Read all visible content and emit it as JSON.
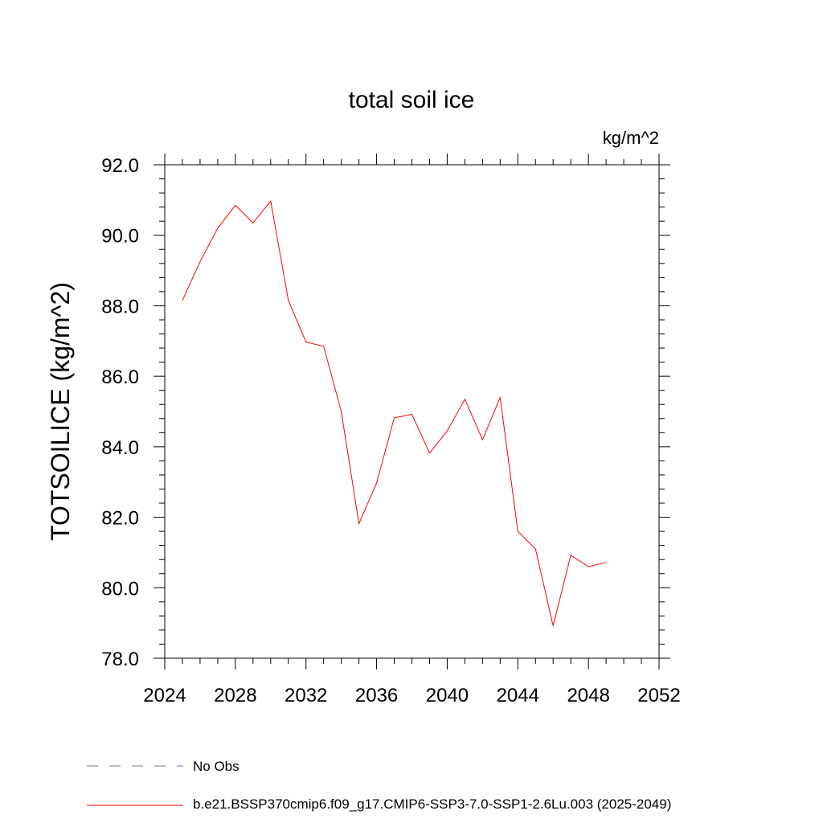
{
  "chart_data": {
    "type": "line",
    "title": "total soil ice",
    "units_label": "kg/m^2",
    "xlabel": "",
    "ylabel": "TOTSOILICE  (kg/m^2)",
    "xlim": [
      2024,
      2052
    ],
    "ylim": [
      78.0,
      92.0
    ],
    "x_ticks": [
      2024,
      2028,
      2032,
      2036,
      2040,
      2044,
      2048,
      2052
    ],
    "y_ticks": [
      78.0,
      80.0,
      82.0,
      84.0,
      86.0,
      88.0,
      90.0,
      92.0
    ],
    "x_tick_labels": [
      "2024",
      "2028",
      "2032",
      "2036",
      "2040",
      "2044",
      "2048",
      "2052"
    ],
    "y_tick_labels": [
      "78.0",
      "80.0",
      "82.0",
      "84.0",
      "86.0",
      "88.0",
      "90.0",
      "92.0"
    ],
    "grid": false,
    "legend_position": "bottom-left",
    "legend": [
      {
        "label": "No Obs",
        "style": "dashed",
        "color": "#7b6fb0"
      },
      {
        "label": "b.e21.BSSP370cmip6.f09_g17.CMIP6-SSP3-7.0-SSP1-2.6Lu.003 (2025-2049)",
        "style": "solid",
        "color": "#ff0000"
      }
    ],
    "series": [
      {
        "name": "b.e21.BSSP370cmip6.f09_g17.CMIP6-SSP3-7.0-SSP1-2.6Lu.003 (2025-2049)",
        "color": "#ff0000",
        "x": [
          2025,
          2026,
          2027,
          2028,
          2029,
          2030,
          2031,
          2032,
          2033,
          2034,
          2035,
          2036,
          2037,
          2038,
          2039,
          2040,
          2041,
          2042,
          2043,
          2044,
          2045,
          2046,
          2047,
          2048,
          2049
        ],
        "y": [
          88.15,
          89.25,
          90.2,
          90.85,
          90.35,
          90.97,
          88.15,
          86.97,
          86.85,
          85.0,
          81.82,
          82.97,
          84.82,
          84.92,
          83.82,
          84.45,
          85.35,
          84.2,
          85.4,
          81.6,
          81.1,
          78.92,
          80.92,
          80.6,
          80.72
        ]
      }
    ]
  }
}
